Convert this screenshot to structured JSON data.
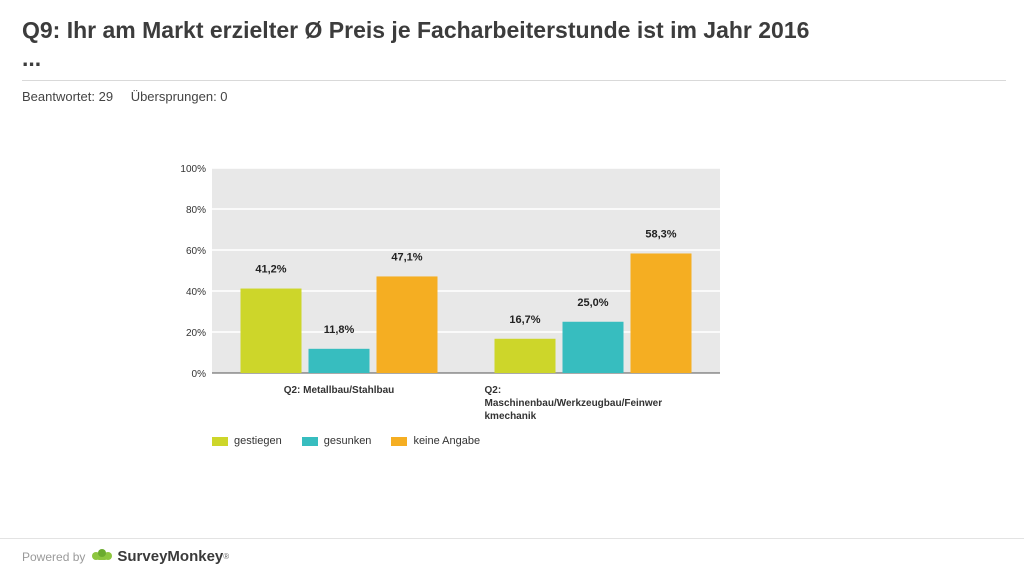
{
  "page": {
    "title": "Q9: Ihr am Markt erzielter Ø Preis je Facharbeiterstunde ist im Jahr 2016",
    "title_ellipsis": "...",
    "answered": "Beantwortet: 29",
    "skipped": "Übersprungen: 0"
  },
  "footer": {
    "powered_by": "Powered by",
    "brand": "SurveyMonkey",
    "trademark": "®"
  },
  "colors": {
    "gestiegen": "#cdd62a",
    "gesunken": "#37bdbf",
    "keine_angabe": "#f5ae22",
    "plot_bg": "#e8e8e8",
    "grid": "#ffffff"
  },
  "chart_data": {
    "type": "bar",
    "title": "",
    "xlabel": "",
    "ylabel": "",
    "ylim": [
      0,
      100
    ],
    "yticks": [
      "0%",
      "20%",
      "40%",
      "60%",
      "80%",
      "100%"
    ],
    "categories": [
      {
        "lines": [
          "Q2: Metallbau/Stahlbau"
        ]
      },
      {
        "lines": [
          "Q2:",
          "Maschinenbau/Werkzeugbau/Feinwer",
          "kmechanik"
        ]
      }
    ],
    "series": [
      {
        "name": "gestiegen",
        "color": "#cdd62a",
        "values": [
          41.2,
          16.7
        ],
        "labels": [
          "41,2%",
          "16,7%"
        ]
      },
      {
        "name": "gesunken",
        "color": "#37bdbf",
        "values": [
          11.8,
          25.0
        ],
        "labels": [
          "11,8%",
          "25,0%"
        ]
      },
      {
        "name": "keine Angabe",
        "color": "#f5ae22",
        "values": [
          47.1,
          58.3
        ],
        "labels": [
          "47,1%",
          "58,3%"
        ]
      }
    ],
    "legend_position": "bottom-left"
  }
}
